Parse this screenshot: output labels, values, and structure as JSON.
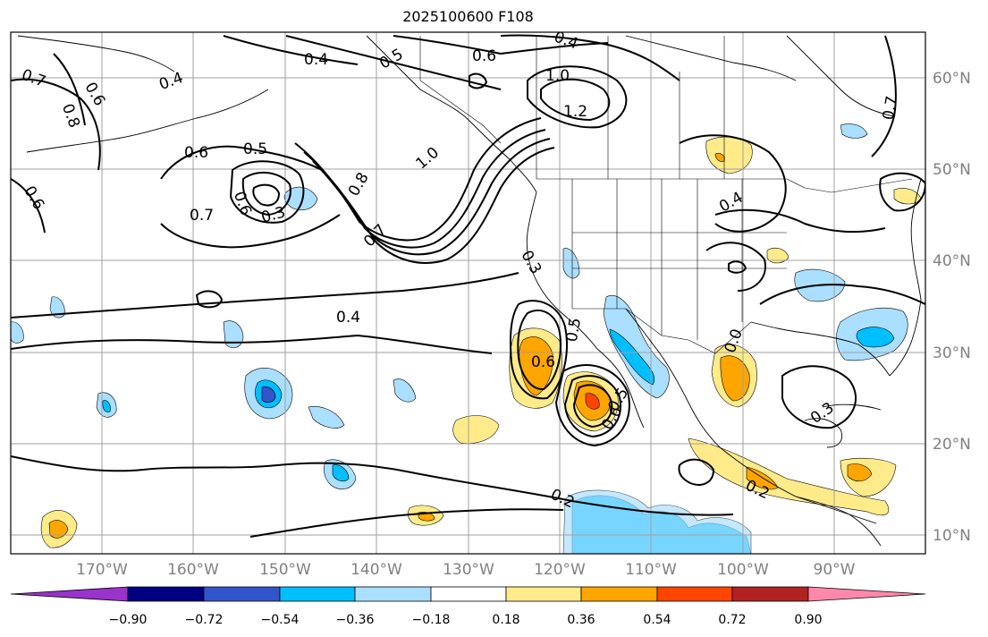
{
  "title": "2025100600 F108",
  "map": {
    "longitude_labels": [
      "170°W",
      "160°W",
      "150°W",
      "140°W",
      "130°W",
      "120°W",
      "110°W",
      "100°W",
      "90°W"
    ],
    "latitude_labels": [
      "60°N",
      "50°N",
      "40°N",
      "30°N",
      "20°N",
      "10°N"
    ],
    "contour_labels": [
      "0.7",
      "0.6",
      "0.8",
      "0.4",
      "0.6",
      "0.5",
      "0.4",
      "0.5",
      "0.6",
      "1.0",
      "1.2",
      "0.6",
      "0.5",
      "0.4",
      "0.3",
      "0.7",
      "1.0",
      "0.8",
      "0.7",
      "0.4",
      "0.4",
      "0.3",
      "0.5",
      "0.6",
      "0.6",
      "0.5",
      "0.6",
      "0.0",
      "0.3",
      "0.2",
      "0.2",
      "0.7",
      "0.6"
    ],
    "colors": {
      "coastline": "#000000",
      "contour": "#000000",
      "grid": "#a0a0a0",
      "land_tick": "#808080"
    }
  },
  "colorbar": {
    "tick_labels": [
      "−0.90",
      "−0.72",
      "−0.54",
      "−0.36",
      "−0.18",
      "0.18",
      "0.36",
      "0.54",
      "0.72",
      "0.90"
    ],
    "colors": [
      "#9933cc",
      "#000080",
      "#3355cc",
      "#00bfff",
      "#aadfff",
      "#ffffff",
      "#ffeb8a",
      "#ffa500",
      "#ff4500",
      "#b22222",
      "#ff88aa"
    ]
  }
}
